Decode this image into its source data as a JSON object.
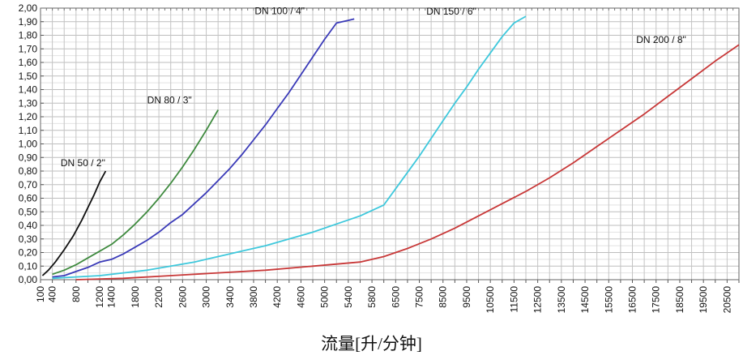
{
  "chart_data": {
    "type": "line",
    "xlabel": "流量[升/分钟]",
    "ylabel": "",
    "ylim": [
      0,
      2.0
    ],
    "y_ticks": [
      "0,00",
      "0,10",
      "0,20",
      "0,30",
      "0,40",
      "0,50",
      "0,60",
      "0,70",
      "0,80",
      "0,90",
      "1,00",
      "1,10",
      "1,20",
      "1,30",
      "1,40",
      "1,50",
      "1,60",
      "1,70",
      "1,80",
      "1,90",
      "2,00"
    ],
    "x_ticks": [
      "100",
      "400",
      "600",
      "800",
      "1000",
      "1200",
      "1400",
      "1600",
      "1800",
      "2000",
      "2200",
      "2400",
      "2600",
      "2800",
      "3000",
      "3200",
      "3400",
      "3600",
      "3800",
      "4000",
      "4200",
      "4400",
      "4600",
      "4800",
      "5000",
      "5200",
      "5400",
      "5600",
      "5800",
      "6000",
      "6500",
      "7000",
      "7500",
      "8000",
      "8500",
      "9000",
      "9500",
      "10000",
      "10500",
      "11000",
      "11500",
      "12000",
      "12500",
      "13000",
      "13500",
      "14000",
      "14500",
      "15000",
      "15500",
      "16000",
      "16500",
      "17000",
      "17500",
      "18000",
      "18500",
      "19000",
      "19500",
      "20000",
      "20500",
      "21000"
    ],
    "x_labels_shown": [
      "100",
      "400",
      "800",
      "1200",
      "1400",
      "1800",
      "2200",
      "2600",
      "3000",
      "3400",
      "3800",
      "4200",
      "4600",
      "5000",
      "5400",
      "5800",
      "6500",
      "7500",
      "8500",
      "9500",
      "10500",
      "11500",
      "12500",
      "13500",
      "14500",
      "15500",
      "16500",
      "17500",
      "18500",
      "19500",
      "20500"
    ],
    "grid": true,
    "series": [
      {
        "name": "DN 50 / 2\"",
        "color": "#111111",
        "x": [
          150,
          300,
          450,
          600,
          750,
          900,
          1000,
          1100,
          1200,
          1300
        ],
        "y": [
          0.03,
          0.07,
          0.13,
          0.22,
          0.32,
          0.44,
          0.53,
          0.62,
          0.72,
          0.8
        ]
      },
      {
        "name": "DN 80 / 3\"",
        "color": "#3e8a3e",
        "x": [
          400,
          600,
          800,
          1000,
          1200,
          1400,
          1600,
          1800,
          2000,
          2200,
          2400,
          2600,
          2800,
          3000,
          3200
        ],
        "y": [
          0.04,
          0.07,
          0.11,
          0.16,
          0.21,
          0.26,
          0.33,
          0.41,
          0.5,
          0.6,
          0.71,
          0.83,
          0.96,
          1.1,
          1.25
        ]
      },
      {
        "name": "DN 100 / 4\"",
        "color": "#3a3ab8",
        "x": [
          400,
          600,
          800,
          1000,
          1200,
          1400,
          1600,
          1800,
          2000,
          2200,
          2400,
          2600,
          2800,
          3000,
          3200,
          3400,
          3600,
          3800,
          4000,
          4200,
          4400,
          4600,
          4800,
          5000,
          5200,
          5400,
          5500
        ],
        "y": [
          0.02,
          0.03,
          0.06,
          0.09,
          0.13,
          0.15,
          0.19,
          0.24,
          0.29,
          0.35,
          0.42,
          0.48,
          0.56,
          0.64,
          0.73,
          0.82,
          0.92,
          1.03,
          1.14,
          1.26,
          1.38,
          1.51,
          1.64,
          1.77,
          1.89,
          1.91,
          1.92
        ]
      },
      {
        "name": "DN 150 / 6\"",
        "color": "#3ec8dc",
        "x": [
          400,
          800,
          1200,
          1600,
          2000,
          2400,
          2800,
          3200,
          3600,
          4000,
          4400,
          4800,
          5200,
          5600,
          6000,
          6500,
          7000,
          7500,
          8000,
          8500,
          9000,
          9500,
          10000,
          10500,
          11000,
          11500,
          12000
        ],
        "y": [
          0.01,
          0.02,
          0.03,
          0.05,
          0.07,
          0.1,
          0.13,
          0.17,
          0.21,
          0.25,
          0.3,
          0.35,
          0.41,
          0.47,
          0.55,
          0.67,
          0.79,
          0.91,
          1.04,
          1.17,
          1.3,
          1.42,
          1.55,
          1.67,
          1.79,
          1.89,
          1.94
        ]
      },
      {
        "name": "DN 200 / 8\"",
        "color": "#c83838",
        "x": [
          800,
          1600,
          2400,
          3200,
          4000,
          4800,
          5600,
          6000,
          7000,
          8000,
          9000,
          10000,
          11000,
          12000,
          13000,
          14000,
          15000,
          16000,
          17000,
          18000,
          19000,
          20000,
          21000
        ],
        "y": [
          0.0,
          0.01,
          0.03,
          0.05,
          0.07,
          0.1,
          0.13,
          0.17,
          0.23,
          0.3,
          0.38,
          0.47,
          0.56,
          0.65,
          0.75,
          0.86,
          0.98,
          1.1,
          1.22,
          1.35,
          1.48,
          1.61,
          1.73
        ]
      }
    ]
  }
}
